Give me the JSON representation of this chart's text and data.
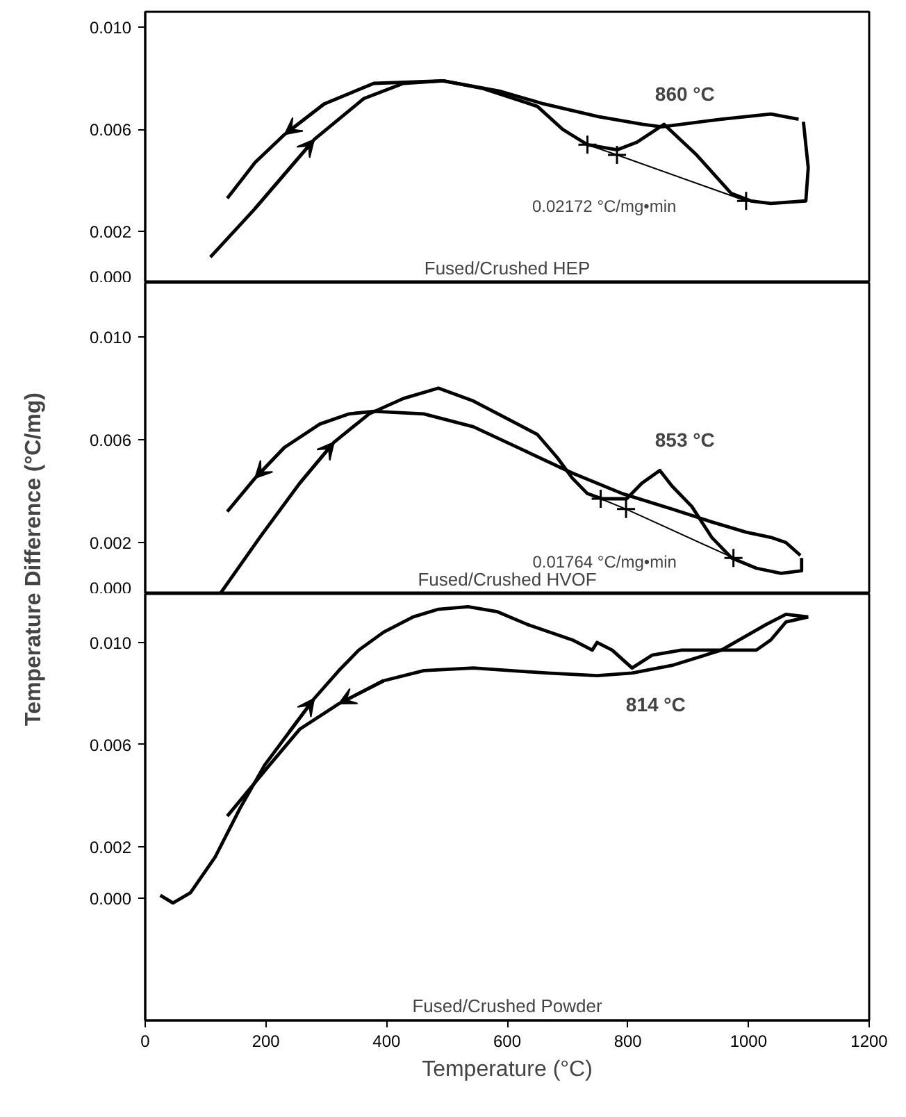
{
  "chart_data": [
    {
      "type": "line",
      "title": "Fused/Crushed HEP",
      "xlim": [
        0,
        1200
      ],
      "ylim": [
        0,
        0.0106
      ],
      "tick_labels": "y",
      "marker": "none",
      "yticks": [
        {
          "value": 0.0,
          "label": "0.000"
        },
        {
          "value": 0.002,
          "label": "0.002"
        },
        {
          "value": 0.006,
          "label": "0.006"
        },
        {
          "value": 0.01,
          "label": "0.010"
        }
      ],
      "series": [
        {
          "color": "#000000",
          "x": [
            108,
            182,
            280,
            362,
            428,
            494,
            560,
            650,
            692,
            733,
            782,
            815,
            860,
            914,
            971,
            1004,
            1037,
            1095,
            1099,
            1091
          ],
          "values": [
            0.001,
            0.0029,
            0.0056,
            0.0072,
            0.0078,
            0.0079,
            0.0076,
            0.0069,
            0.006,
            0.0054,
            0.0052,
            0.0055,
            0.0062,
            0.005,
            0.0035,
            0.0032,
            0.0031,
            0.0032,
            0.0045,
            0.0063
          ]
        },
        {
          "color": "#000000",
          "x": [
            1083,
            1037,
            955,
            856,
            824,
            751,
            660,
            587,
            494,
            379,
            297,
            231,
            182,
            136
          ],
          "values": [
            0.0064,
            0.0066,
            0.0064,
            0.0061,
            0.0062,
            0.0065,
            0.007,
            0.0075,
            0.0079,
            0.0078,
            0.007,
            0.0058,
            0.0047,
            0.0033
          ]
        },
        {
          "color": "#000000",
          "marker": "cross",
          "x": [
            733,
            782,
            996
          ],
          "values": [
            0.0054,
            0.005,
            0.0032
          ]
        }
      ],
      "annotations": [
        {
          "text": "860 °C",
          "x": 860,
          "y": 0.0062
        },
        "0.02172 °C/mg•min"
      ]
    },
    {
      "type": "line",
      "title": "Fused/Crushed HVOF",
      "ylabel": "Temperature Difference (°C/mg)",
      "xlim": [
        0,
        1200
      ],
      "ylim": [
        0,
        0.0121
      ],
      "tick_labels": "y",
      "marker": "none",
      "yticks": [
        {
          "value": 0.0,
          "label": "0.000"
        },
        {
          "value": 0.002,
          "label": "0.002"
        },
        {
          "value": 0.006,
          "label": "0.006"
        },
        {
          "value": 0.01,
          "label": "0.010"
        }
      ],
      "series": [
        {
          "color": "#000000",
          "x": [
            124,
            190,
            256,
            313,
            371,
            428,
            486,
            544,
            601,
            650,
            683,
            708,
            733,
            757,
            798,
            823,
            853,
            873,
            906,
            939,
            972,
            1013,
            1054,
            1088,
            1088
          ],
          "values": [
            0.0,
            0.0022,
            0.0043,
            0.0059,
            0.007,
            0.0076,
            0.008,
            0.0075,
            0.0068,
            0.0062,
            0.0053,
            0.0045,
            0.0039,
            0.0037,
            0.0037,
            0.0043,
            0.0048,
            0.0042,
            0.0034,
            0.0022,
            0.0014,
            0.001,
            0.0008,
            0.0009,
            0.0014
          ]
        },
        {
          "color": "#000000",
          "x": [
            1086,
            1062,
            1037,
            996,
            939,
            873,
            791,
            708,
            626,
            544,
            462,
            379,
            338,
            289,
            231,
            182,
            136
          ],
          "values": [
            0.0015,
            0.002,
            0.0022,
            0.0024,
            0.0028,
            0.0033,
            0.0039,
            0.0047,
            0.0056,
            0.0065,
            0.007,
            0.0071,
            0.007,
            0.0066,
            0.0057,
            0.0045,
            0.0032
          ]
        },
        {
          "color": "#000000",
          "marker": "cross",
          "x": [
            755,
            797,
            975
          ],
          "values": [
            0.0037,
            0.0033,
            0.0014
          ]
        }
      ],
      "annotations": [
        {
          "text": "853 °C",
          "x": 853,
          "y": 0.0048
        },
        "0.01764 °C/mg•min"
      ]
    },
    {
      "type": "line",
      "title": "Fused/Crushed Powder",
      "xlabel": "Temperature (°C)",
      "xlim": [
        0,
        1200
      ],
      "ylim": [
        -0.0048,
        0.0119
      ],
      "marker": "none",
      "xticks": [
        0,
        200,
        400,
        600,
        800,
        1000,
        1200
      ],
      "yticks": [
        {
          "value": 0.0,
          "label": "0.000"
        },
        {
          "value": 0.002,
          "label": "0.002"
        },
        {
          "value": 0.006,
          "label": "0.006"
        },
        {
          "value": 0.01,
          "label": "0.010"
        }
      ],
      "series": [
        {
          "color": "#000000",
          "x": [
            25,
            46,
            75,
            116,
            157,
            198,
            239,
            280,
            321,
            354,
            395,
            444,
            486,
            535,
            584,
            634,
            708,
            741,
            749,
            774,
            807,
            840,
            889,
            955,
            1013,
            1037,
            1062,
            1099
          ],
          "values": [
            0.0001,
            -0.0002,
            0.0002,
            0.0016,
            0.0035,
            0.0052,
            0.0065,
            0.0078,
            0.0089,
            0.0097,
            0.0104,
            0.011,
            0.0113,
            0.0114,
            0.0112,
            0.0107,
            0.0101,
            0.0097,
            0.01,
            0.0097,
            0.009,
            0.0095,
            0.0097,
            0.0097,
            0.0097,
            0.0101,
            0.0108,
            0.011
          ]
        },
        {
          "color": "#000000",
          "x": [
            1099,
            1062,
            1029,
            955,
            873,
            807,
            749,
            667,
            544,
            462,
            395,
            321,
            256,
            206,
            136
          ],
          "values": [
            0.011,
            0.0111,
            0.0107,
            0.0097,
            0.0091,
            0.0088,
            0.0087,
            0.0088,
            0.009,
            0.0089,
            0.0085,
            0.0076,
            0.0066,
            0.0052,
            0.0032
          ]
        }
      ],
      "annotations": [
        {
          "text": "814 °C",
          "x": 814,
          "y": 0.009
        }
      ]
    }
  ]
}
